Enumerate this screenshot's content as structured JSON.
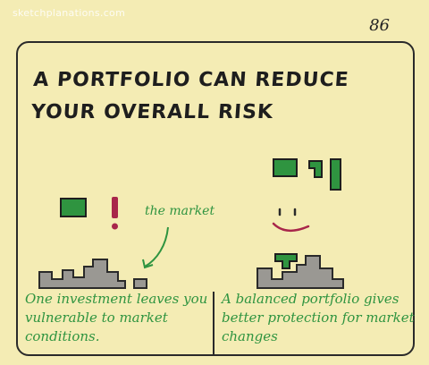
{
  "watermark": "sketchplanations.com",
  "page_number": "86",
  "title": "A portfolio can reduce your overall risk",
  "left_panel": {
    "market_label": "the market",
    "caption": "One investment leaves you vulnerable to market conditions."
  },
  "right_panel": {
    "caption": "A balanced portfolio gives better protection for market changes"
  },
  "colors": {
    "background": "#f4ecb4",
    "ink": "#2a2a2a",
    "green": "#2f9440",
    "red": "#a8264a",
    "market_gray": "#9a9893"
  }
}
